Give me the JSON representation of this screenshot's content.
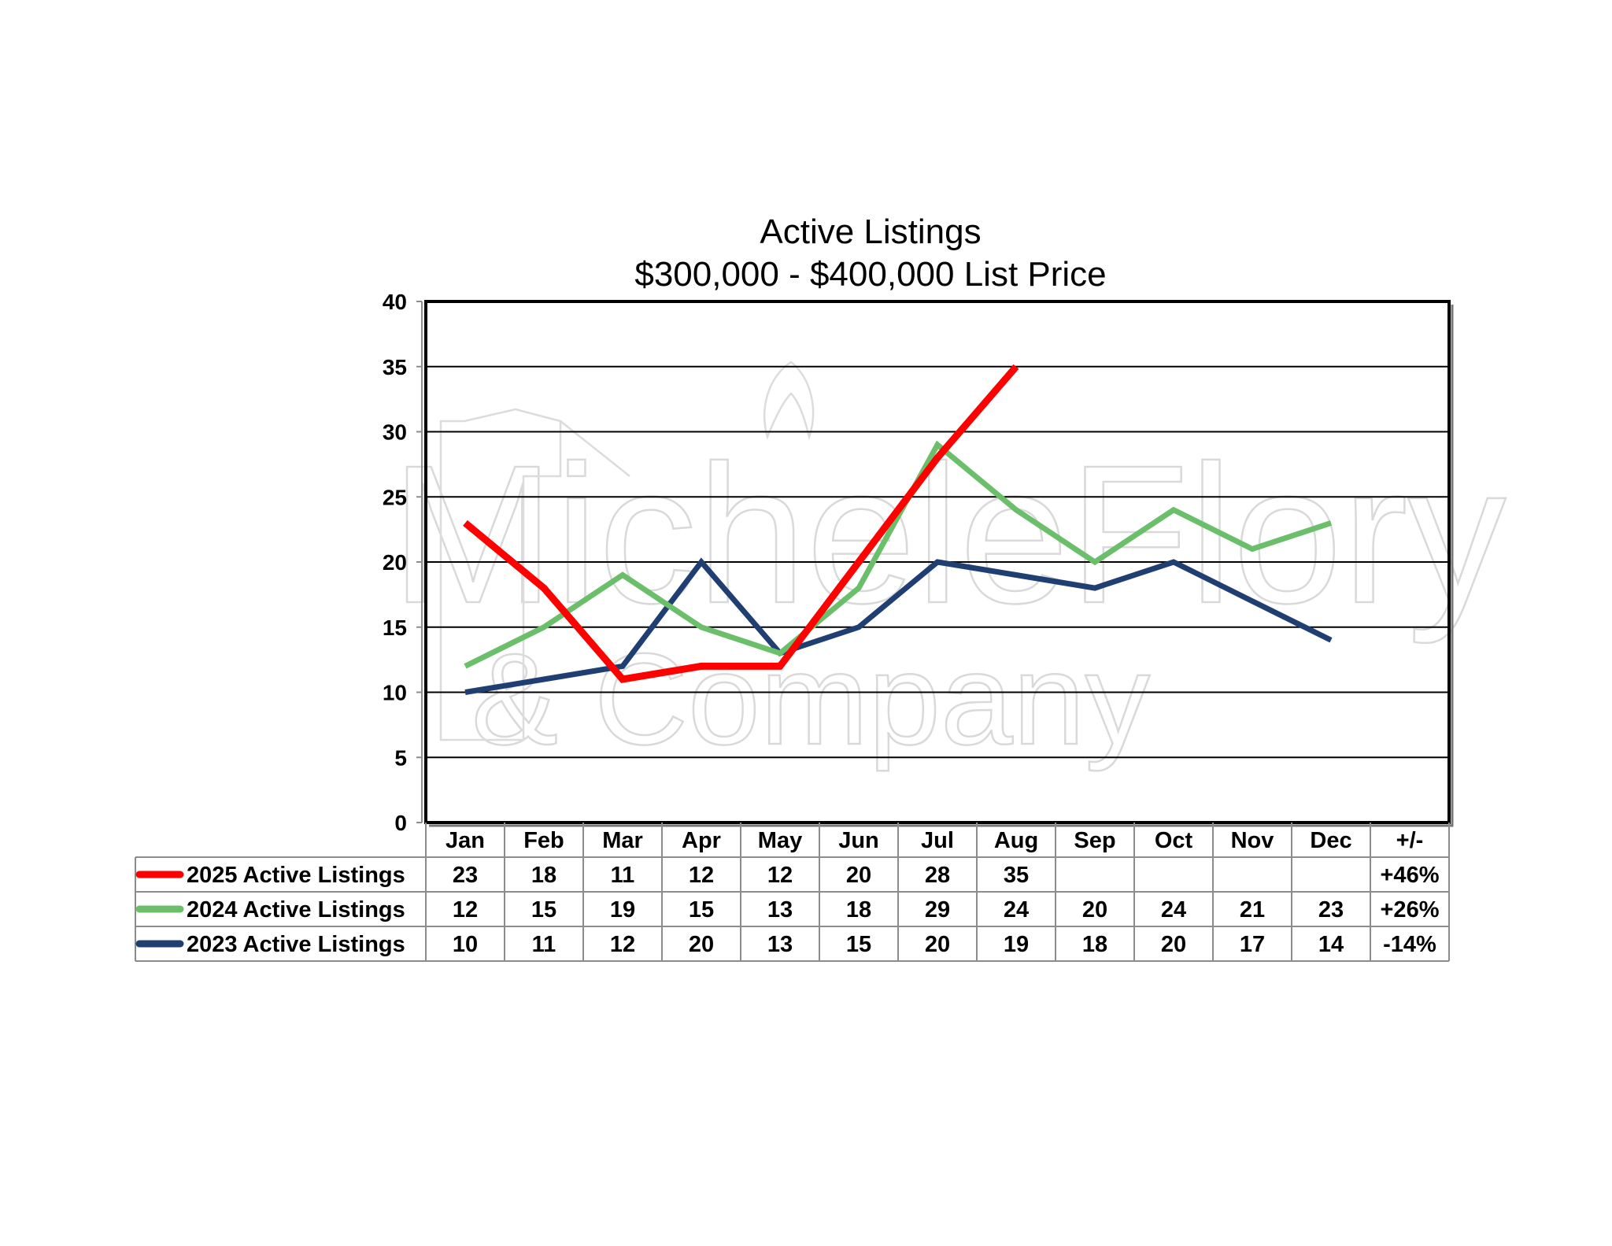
{
  "chart_data": {
    "type": "line",
    "title": "Active Listings",
    "subtitle": "$300,000 - $400,000 List Price",
    "categories": [
      "Jan",
      "Feb",
      "Mar",
      "Apr",
      "May",
      "Jun",
      "Jul",
      "Aug",
      "Sep",
      "Oct",
      "Nov",
      "Dec"
    ],
    "change_header": "+/-",
    "ylim": [
      0,
      40
    ],
    "yticks": [
      "0",
      "5",
      "10",
      "15",
      "20",
      "25",
      "30",
      "35",
      "40"
    ],
    "grid": true,
    "legend_placement": "data-table-below",
    "series": [
      {
        "name": "2025 Active Listings",
        "color": "#ff0000",
        "values": [
          23,
          18,
          11,
          12,
          12,
          20,
          28,
          35,
          null,
          null,
          null,
          null
        ],
        "change": "+46%"
      },
      {
        "name": "2024 Active Listings",
        "color": "#6bbf6b",
        "values": [
          12,
          15,
          19,
          15,
          13,
          18,
          29,
          24,
          20,
          24,
          21,
          23
        ],
        "change": "+26%"
      },
      {
        "name": "2023 Active Listings",
        "color": "#1f3f73",
        "values": [
          10,
          11,
          12,
          20,
          13,
          15,
          20,
          19,
          18,
          20,
          17,
          14
        ],
        "change": "-14%"
      }
    ]
  },
  "watermark": {
    "line1": "MicheleFlory",
    "line2": "& Company"
  }
}
